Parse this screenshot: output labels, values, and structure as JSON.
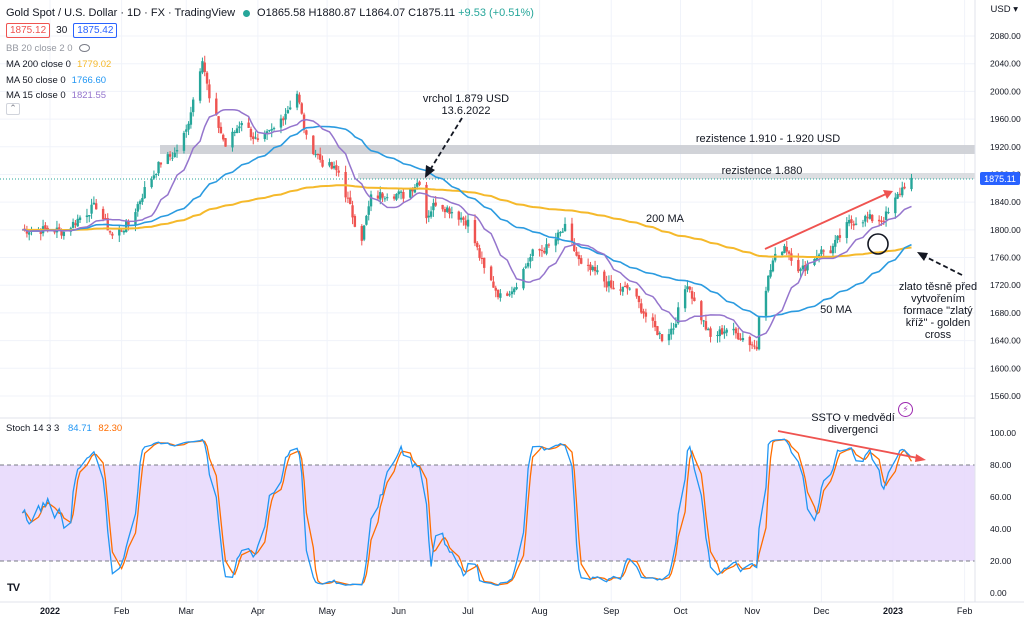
{
  "header": {
    "symbol": "Gold Spot / U.S. Dollar · 1D · FX · TradingView",
    "open": "O1865.58",
    "high": "H1880.87",
    "low": "L1864.07",
    "close": "C1875.11",
    "change": "+9.53 (+0.51%)",
    "bid": "1875.12",
    "spread": "30",
    "ask": "1875.42",
    "currency": "USD"
  },
  "legends": [
    {
      "label": "BB 20 close 2 0",
      "value": "",
      "color": "#787b86"
    },
    {
      "label": "MA 200 close 0",
      "value": "1779.02",
      "color": "#f5b92b"
    },
    {
      "label": "MA 50 close 0",
      "value": "1766.60",
      "color": "#2196f3"
    },
    {
      "label": "MA 15 close 0",
      "value": "1821.55",
      "color": "#9575cd"
    }
  ],
  "stoch_legend": {
    "label": "Stoch 14 3 3",
    "k": "84.71",
    "d": "82.30",
    "k_color": "#2196f3",
    "d_color": "#ff6d00"
  },
  "annotations": {
    "peak_line1": "vrchol 1.879 USD",
    "peak_line2": "13.6.2022",
    "res_zone": "rezistence 1.910 - 1.920 USD",
    "res_line": "rezistence 1.880",
    "ma200": "200 MA",
    "ma50": "50 MA",
    "cross_line1": "zlato těsně před",
    "cross_line2": "vytvořením",
    "cross_line3": "formace \"zlatý",
    "cross_line4": "kříž\" - golden",
    "cross_line5": "cross",
    "ssto_line1": "SSTO v medvědí",
    "ssto_line2": "divergenci"
  },
  "price_label": "1875.11",
  "chart_data": {
    "type": "line",
    "title": "Gold Spot / U.S. Dollar · 1D · FX · TradingView",
    "x_ticks": [
      "2022",
      "Feb",
      "Mar",
      "Apr",
      "May",
      "Jun",
      "Jul",
      "Aug",
      "Sep",
      "Oct",
      "Nov",
      "Dec",
      "2023",
      "Feb"
    ],
    "y_ticks": [
      1560,
      1600,
      1640,
      1680,
      1720,
      1760,
      1800,
      1840,
      1880,
      1920,
      1960,
      2000,
      2040,
      2080
    ],
    "ylim": [
      1540,
      2100
    ],
    "stoch_ticks": [
      "0.00",
      "20.00",
      "40.00",
      "60.00",
      "80.00",
      "100.00"
    ],
    "stoch_ylim": [
      0,
      100
    ],
    "resistance_zone": [
      1910,
      1920
    ],
    "resistance_line": 1880,
    "close_series": [
      [
        "2022-01-03",
        1800
      ],
      [
        "2022-01-07",
        1797
      ],
      [
        "2022-01-14",
        1818
      ],
      [
        "2022-01-21",
        1835
      ],
      [
        "2022-01-28",
        1791
      ],
      [
        "2022-02-04",
        1808
      ],
      [
        "2022-02-11",
        1858
      ],
      [
        "2022-02-18",
        1898
      ],
      [
        "2022-02-24",
        1910
      ],
      [
        "2022-03-01",
        1943
      ],
      [
        "2022-03-08",
        2050
      ],
      [
        "2022-03-11",
        1988
      ],
      [
        "2022-03-18",
        1921
      ],
      [
        "2022-03-25",
        1958
      ],
      [
        "2022-04-01",
        1925
      ],
      [
        "2022-04-08",
        1945
      ],
      [
        "2022-04-14",
        1975
      ],
      [
        "2022-04-18",
        1998
      ],
      [
        "2022-04-22",
        1931
      ],
      [
        "2022-04-29",
        1897
      ],
      [
        "2022-05-06",
        1883
      ],
      [
        "2022-05-13",
        1811
      ],
      [
        "2022-05-16",
        1789
      ],
      [
        "2022-05-20",
        1846
      ],
      [
        "2022-05-27",
        1853
      ],
      [
        "2022-06-03",
        1850
      ],
      [
        "2022-06-10",
        1871
      ],
      [
        "2022-06-13",
        1819
      ],
      [
        "2022-06-17",
        1840
      ],
      [
        "2022-06-24",
        1827
      ],
      [
        "2022-07-01",
        1811
      ],
      [
        "2022-07-08",
        1742
      ],
      [
        "2022-07-15",
        1703
      ],
      [
        "2022-07-21",
        1718
      ],
      [
        "2022-07-29",
        1766
      ],
      [
        "2022-08-05",
        1775
      ],
      [
        "2022-08-12",
        1802
      ],
      [
        "2022-08-19",
        1747
      ],
      [
        "2022-08-26",
        1737
      ],
      [
        "2022-09-02",
        1712
      ],
      [
        "2022-09-09",
        1716
      ],
      [
        "2022-09-16",
        1675
      ],
      [
        "2022-09-23",
        1644
      ],
      [
        "2022-09-28",
        1660
      ],
      [
        "2022-10-04",
        1725
      ],
      [
        "2022-10-07",
        1695
      ],
      [
        "2022-10-14",
        1644
      ],
      [
        "2022-10-21",
        1657
      ],
      [
        "2022-10-28",
        1644
      ],
      [
        "2022-11-03",
        1630
      ],
      [
        "2022-11-04",
        1681
      ],
      [
        "2022-11-10",
        1755
      ],
      [
        "2022-11-15",
        1778
      ],
      [
        "2022-11-22",
        1740
      ],
      [
        "2022-11-30",
        1768
      ],
      [
        "2022-12-05",
        1770
      ],
      [
        "2022-12-13",
        1810
      ],
      [
        "2022-12-20",
        1817
      ],
      [
        "2022-12-27",
        1814
      ],
      [
        "2022-12-30",
        1824
      ],
      [
        "2023-01-04",
        1855
      ],
      [
        "2023-01-06",
        1865
      ],
      [
        "2023-01-09",
        1875
      ]
    ],
    "series": [
      {
        "name": "MA 200 close 0",
        "last": 1779.02
      },
      {
        "name": "MA 50 close 0",
        "last": 1766.6
      },
      {
        "name": "MA 15 close 0",
        "last": 1821.55
      },
      {
        "name": "Stoch 14 3 3",
        "k_last": 84.71,
        "d_last": 82.3
      }
    ]
  }
}
